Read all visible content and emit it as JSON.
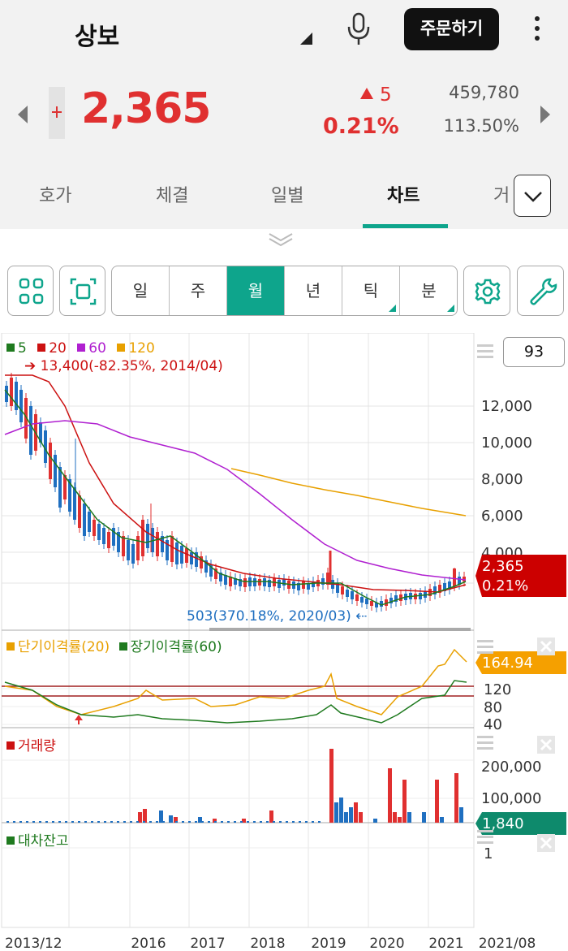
{
  "header": {
    "stock_name": "상보",
    "order_button": "주문하기"
  },
  "quote": {
    "price": "2,365",
    "change": "5",
    "change_pct": "0.21%",
    "volume": "459,780",
    "volume_ratio": "113.50%"
  },
  "tabs": [
    {
      "label": "호가"
    },
    {
      "label": "체결"
    },
    {
      "label": "일별"
    },
    {
      "label": "차트",
      "active": true
    },
    {
      "label": "거"
    }
  ],
  "periods": [
    {
      "label": "일"
    },
    {
      "label": "주"
    },
    {
      "label": "월",
      "active": true
    },
    {
      "label": "년"
    },
    {
      "label": "틱"
    },
    {
      "label": "분"
    }
  ],
  "candle_count": "93",
  "colors": {
    "up": "#e03030",
    "down": "#1f6fc0",
    "accent": "#0ea58c",
    "ma5": "#1f7a1f",
    "ma20": "#cc1111",
    "ma60": "#b020d0",
    "ma120": "#e8a000"
  },
  "chart_data": [
    {
      "type": "line",
      "name": "price-chart",
      "legend": [
        {
          "name": "5",
          "color": "#1f7a1f"
        },
        {
          "name": "20",
          "color": "#cc1111"
        },
        {
          "name": "60",
          "color": "#b020d0"
        },
        {
          "name": "120",
          "color": "#e8a000"
        }
      ],
      "high_annotation": "13,400(-82.35%, 2014/04)",
      "low_annotation": "503(370.18%, 2020/03)",
      "yticks": [
        "12,000",
        "10,000",
        "8,000",
        "6,000",
        "4,000"
      ],
      "ylim": [
        0,
        14000
      ],
      "current_label": "2,365",
      "current_pct": "0.21%",
      "x_labels": [
        "2013/12",
        "2016",
        "2017",
        "2018",
        "2019",
        "2020",
        "2021",
        "2021/08"
      ]
    },
    {
      "type": "line",
      "name": "disparity-chart",
      "legend": [
        {
          "name": "단기이격률(20)",
          "color": "#e8a000"
        },
        {
          "name": "장기이격률(60)",
          "color": "#1f7a1f"
        }
      ],
      "yticks": [
        "120",
        "80",
        "40"
      ],
      "current_label": "164.94"
    },
    {
      "type": "bar",
      "name": "volume-chart",
      "legend": [
        {
          "name": "거래량",
          "color": "#cc1111"
        }
      ],
      "yticks": [
        "200,000",
        "100,000"
      ],
      "current_label": "1,840"
    },
    {
      "type": "line",
      "name": "loan-balance-chart",
      "legend": [
        {
          "name": "대차잔고",
          "color": "#1f7a1f"
        }
      ],
      "yticks": [
        "1"
      ]
    }
  ]
}
